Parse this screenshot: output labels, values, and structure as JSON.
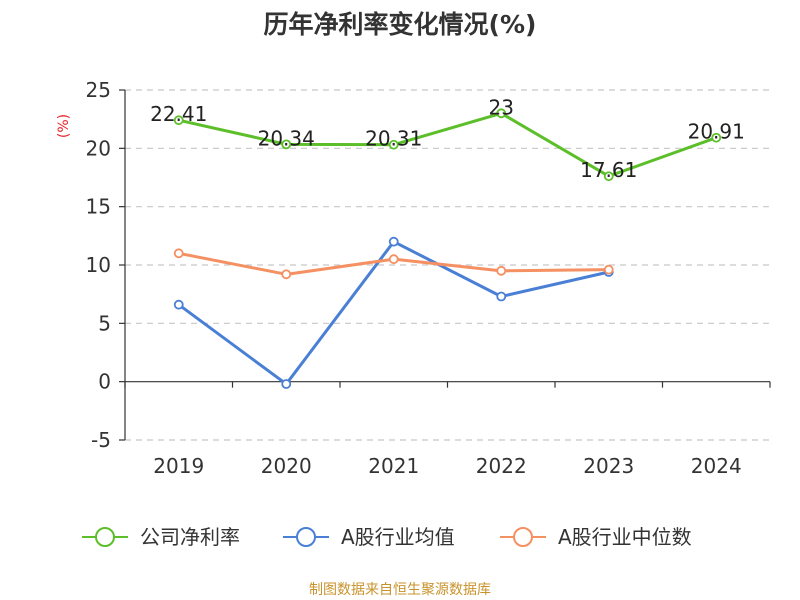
{
  "chart_data": {
    "type": "line",
    "title": "历年净利率变化情况(%)",
    "unit_label": "(%)",
    "categories": [
      "2019",
      "2020",
      "2021",
      "2022",
      "2023",
      "2024"
    ],
    "ylim": [
      -5,
      25
    ],
    "yticks": [
      25,
      20,
      15,
      10,
      5,
      0,
      -5
    ],
    "grid": true,
    "legend_position": "bottom",
    "series": [
      {
        "name": "公司净利率",
        "color": "#5cbf2a",
        "values": [
          22.41,
          20.34,
          20.31,
          23,
          17.61,
          20.91
        ],
        "labels": [
          "22.41",
          "20.34",
          "20.31",
          "23",
          "17.61",
          "20.91"
        ]
      },
      {
        "name": "A股行业均值",
        "color": "#4a7fd6",
        "values": [
          6.6,
          -0.2,
          12,
          7.3,
          9.4,
          null
        ]
      },
      {
        "name": "A股行业中位数",
        "color": "#f59062",
        "values": [
          11,
          9.2,
          10.5,
          9.5,
          9.6,
          null
        ]
      }
    ],
    "source": "制图数据来自恒生聚源数据库"
  }
}
